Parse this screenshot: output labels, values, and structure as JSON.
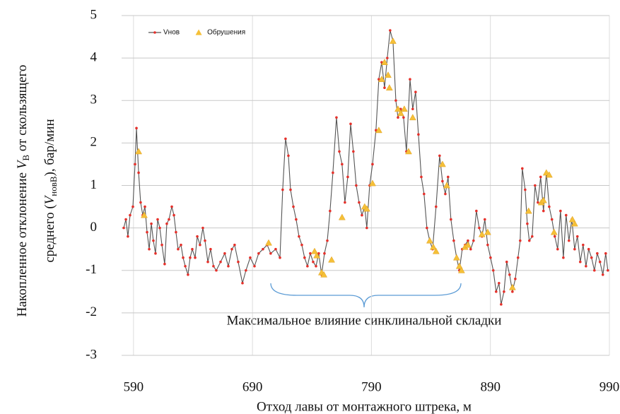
{
  "chart_data": {
    "type": "line",
    "xlabel": "Отход лавы от монтажного штрека, м",
    "ylabel": [
      [
        "Накопленное отклонение ",
        "V",
        "В",
        " от скользящего"
      ],
      [
        "среднего (",
        "V",
        "новВ",
        "), бар/мин"
      ]
    ],
    "annotation": "Максимальное влияние синклинальной складки",
    "xlim": [
      580,
      990
    ],
    "xticks": [
      590,
      690,
      790,
      890,
      990
    ],
    "ylim": [
      -3,
      5
    ],
    "yticks": [
      -3,
      -2,
      -1,
      0,
      1,
      2,
      3,
      4,
      5
    ],
    "grid": true,
    "legend": "upper left",
    "series": [
      {
        "name": "Vнов",
        "type": "line",
        "color": "#555555",
        "marker_color": "#e5302a",
        "x": [
          581.8,
          583.6,
          585.3,
          587.1,
          589.5,
          591.3,
          592.5,
          594.3,
          596,
          597.8,
          599.6,
          601.4,
          603.2,
          605,
          606.7,
          608.5,
          610.3,
          612.1,
          613.9,
          616.2,
          618,
          619.8,
          622.2,
          624,
          625.7,
          627.5,
          629.9,
          631.7,
          633.5,
          635.8,
          637.6,
          639.4,
          641.8,
          643.6,
          645.9,
          648.3,
          650.1,
          652.5,
          654.8,
          657.2,
          659.6,
          663.2,
          666.7,
          669.7,
          672.7,
          675,
          678,
          681.6,
          684.5,
          688.1,
          691.7,
          695.2,
          698.8,
          702.4,
          705.3,
          709.5,
          713.1,
          715.4,
          717.8,
          720.2,
          722,
          724.4,
          726.7,
          729.1,
          731.5,
          733.8,
          736.2,
          738.6,
          741,
          743.4,
          745.7,
          748.1,
          750.5,
          752.9,
          755.2,
          757.6,
          760.6,
          763,
          765.3,
          767.7,
          770.1,
          772.5,
          774.8,
          777.2,
          779.6,
          782,
          784.3,
          786.1,
          788.5,
          790.9,
          793.8,
          796.2,
          798.6,
          801,
          803.3,
          805.7,
          808.1,
          810.5,
          812.3,
          814.6,
          817,
          819.4,
          822.4,
          824.7,
          827.1,
          829.5,
          831.9,
          834.2,
          836.6,
          839,
          841.4,
          844.3,
          847.3,
          849.7,
          852.1,
          854.4,
          856.8,
          859.2,
          861.6,
          863.9,
          866.3,
          868.7,
          871.1,
          873.4,
          875.8,
          878.2,
          880.6,
          882.9,
          885.3,
          887.7,
          890.1,
          892.4,
          894.8,
          897.2,
          899,
          901.4,
          903.7,
          906.1,
          908.5,
          910.9,
          913.2,
          915,
          916.8,
          919.2,
          921,
          922.7,
          925.1,
          927.5,
          929.9,
          932.2,
          934.6,
          937,
          939.4,
          941.7,
          944.1,
          946.5,
          948.9,
          951.3,
          953.6,
          956,
          958.4,
          960.8,
          963.1,
          965.5,
          967.9,
          970.3,
          972.6,
          975,
          977.4,
          979.8,
          982.1,
          984.5,
          986.9,
          988.7
        ],
        "values": [
          0.0,
          0.2,
          -0.2,
          0.3,
          0.5,
          1.5,
          2.35,
          1.3,
          0.6,
          0.3,
          0.5,
          -0.1,
          -0.5,
          0.1,
          -0.3,
          -0.6,
          0.2,
          0.0,
          -0.4,
          -0.85,
          0.1,
          0.2,
          0.5,
          0.3,
          -0.1,
          -0.5,
          -0.4,
          -0.7,
          -0.9,
          -1.1,
          -0.7,
          -0.5,
          -0.7,
          -0.2,
          -0.4,
          0.0,
          -0.3,
          -0.8,
          -0.5,
          -0.9,
          -1.0,
          -0.8,
          -0.6,
          -0.9,
          -0.5,
          -0.4,
          -0.8,
          -1.3,
          -1.0,
          -0.7,
          -0.9,
          -0.6,
          -0.5,
          -0.4,
          -0.6,
          -0.5,
          -0.7,
          0.9,
          2.1,
          1.7,
          0.9,
          0.5,
          0.2,
          -0.2,
          -0.4,
          -0.7,
          -0.9,
          -0.6,
          -0.8,
          -0.9,
          -0.6,
          -1.1,
          -0.6,
          -0.3,
          0.4,
          1.3,
          2.6,
          1.8,
          1.5,
          0.6,
          1.2,
          2.45,
          1.8,
          1.0,
          0.6,
          0.3,
          0.5,
          0.0,
          1.0,
          1.5,
          2.3,
          3.5,
          3.9,
          3.3,
          4.0,
          4.65,
          4.4,
          3.0,
          2.6,
          2.8,
          2.6,
          1.8,
          3.5,
          2.8,
          3.2,
          2.2,
          1.2,
          0.8,
          0.0,
          -0.3,
          -0.5,
          0.5,
          1.7,
          1.1,
          0.8,
          1.2,
          0.2,
          -0.3,
          -0.7,
          -1.0,
          -0.5,
          -0.4,
          -0.3,
          -0.5,
          -0.3,
          0.4,
          0.0,
          -0.2,
          0.2,
          -0.4,
          -0.7,
          -1.0,
          -1.5,
          -1.3,
          -1.8,
          -1.5,
          -0.8,
          -1.1,
          -1.5,
          -1.2,
          -0.7,
          -0.3,
          1.4,
          0.9,
          0.1,
          -0.3,
          -0.2,
          1.0,
          0.6,
          1.2,
          0.4,
          1.3,
          0.5,
          0.2,
          -0.2,
          -0.5,
          0.4,
          -0.7,
          0.3,
          -0.3,
          0.2,
          -0.5,
          -0.2,
          -0.8,
          -0.4,
          -0.9,
          -0.5,
          -0.7,
          -1.0,
          -0.6,
          -0.8,
          -1.1,
          -0.6,
          -1.0
        ]
      },
      {
        "name": "Обрушения",
        "type": "scatter",
        "marker": "triangle",
        "color": "#f5c038",
        "x": [
          594.3,
          599,
          703.6,
          742.2,
          744,
          748.1,
          750,
          756.5,
          765.3,
          784.3,
          786.1,
          790.9,
          796.2,
          798.6,
          801,
          804,
          805.1,
          808.1,
          812.3,
          814.6,
          817.6,
          821.2,
          824.7,
          839,
          842,
          844.3,
          849.7,
          853.3,
          861.6,
          863.9,
          865.7,
          868.7,
          871.1,
          882.9,
          887.7,
          908.5,
          922.1,
          932.8,
          934.6,
          937,
          939.4,
          943.5,
          958.9,
          960.8
        ],
        "values": [
          1.8,
          0.3,
          -0.35,
          -0.55,
          -0.65,
          -1.05,
          -1.1,
          -0.75,
          0.25,
          0.5,
          0.45,
          1.05,
          2.3,
          3.5,
          3.9,
          3.6,
          3.3,
          4.4,
          2.8,
          2.7,
          2.8,
          1.8,
          2.6,
          -0.3,
          -0.45,
          -0.55,
          1.5,
          1.0,
          -0.7,
          -0.9,
          -1.0,
          -0.45,
          -0.4,
          -0.15,
          -0.1,
          -1.4,
          0.4,
          0.6,
          0.65,
          1.3,
          1.25,
          -0.1,
          0.2,
          0.1
        ]
      }
    ]
  }
}
